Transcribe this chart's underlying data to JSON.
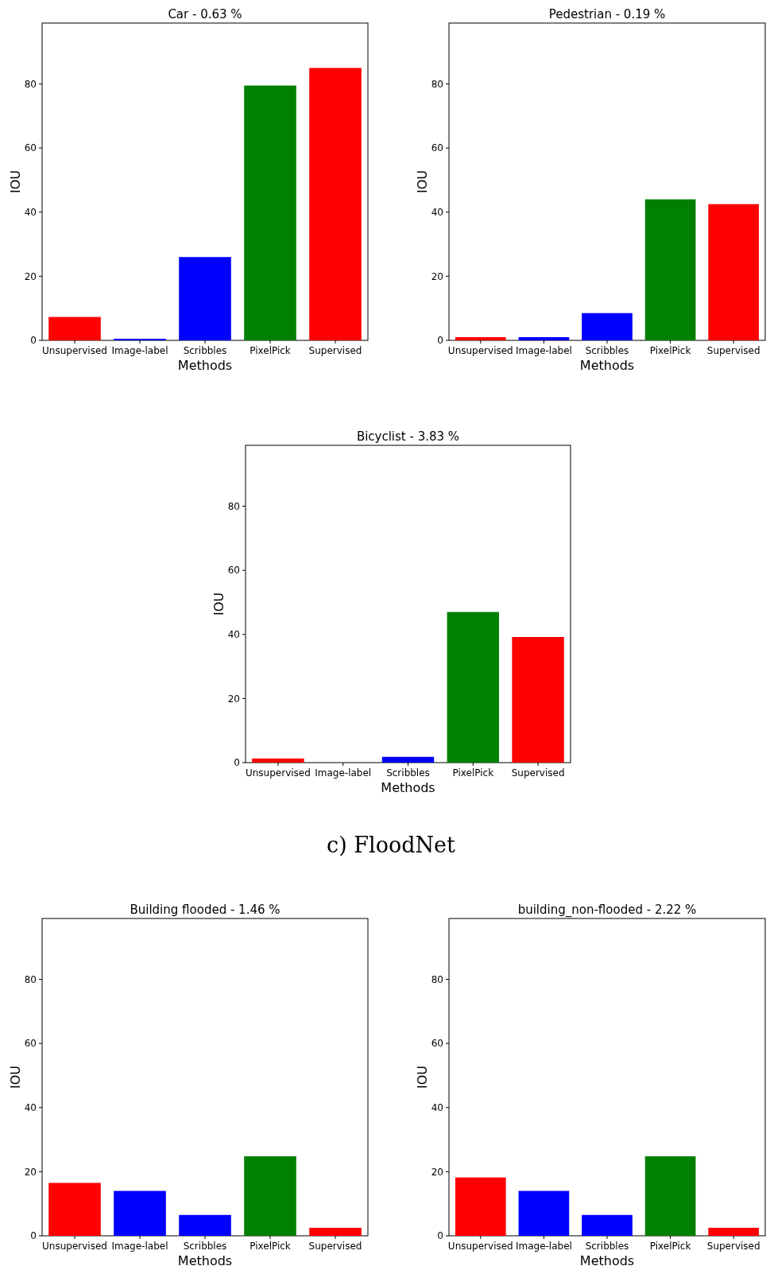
{
  "chart_data": [
    {
      "type": "bar",
      "title": "Car - 0.63 %",
      "xlabel": "Methods",
      "ylabel": "IOU",
      "categories": [
        "Unsupervised",
        "Image-label",
        "Scribbles",
        "PixelPick",
        "Supervised"
      ],
      "values": [
        7.3,
        0.5,
        26,
        79.5,
        85
      ],
      "colors": [
        "#ff0000",
        "#0000ff",
        "#0000ff",
        "#008000",
        "#ff0000"
      ],
      "ylim": [
        0,
        99
      ],
      "yticks": [
        0,
        20,
        40,
        60,
        80
      ]
    },
    {
      "type": "bar",
      "title": "Pedestrian - 0.19 %",
      "xlabel": "Methods",
      "ylabel": "IOU",
      "categories": [
        "Unsupervised",
        "Image-label",
        "Scribbles",
        "PixelPick",
        "Supervised"
      ],
      "values": [
        1,
        1,
        8.5,
        44,
        42.5
      ],
      "colors": [
        "#ff0000",
        "#0000ff",
        "#0000ff",
        "#008000",
        "#ff0000"
      ],
      "ylim": [
        0,
        99
      ],
      "yticks": [
        0,
        20,
        40,
        60,
        80
      ]
    },
    {
      "type": "bar",
      "title": "Bicyclist - 3.83 %",
      "xlabel": "Methods",
      "ylabel": "IOU",
      "categories": [
        "Unsupervised",
        "Image-label",
        "Scribbles",
        "PixelPick",
        "Supervised"
      ],
      "values": [
        1.3,
        0,
        1.8,
        47,
        39.2
      ],
      "colors": [
        "#ff0000",
        "#0000ff",
        "#0000ff",
        "#008000",
        "#ff0000"
      ],
      "ylim": [
        0,
        99
      ],
      "yticks": [
        0,
        20,
        40,
        60,
        80
      ]
    },
    {
      "type": "other",
      "title": "c) FloodNet"
    },
    {
      "type": "bar",
      "title": "Building flooded - 1.46 %",
      "xlabel": "Methods",
      "ylabel": "IOU",
      "categories": [
        "Unsupervised",
        "Image-label",
        "Scribbles",
        "PixelPick",
        "Supervised"
      ],
      "values": [
        16.5,
        14,
        6.5,
        24.8,
        2.5
      ],
      "colors": [
        "#ff0000",
        "#0000ff",
        "#0000ff",
        "#008000",
        "#ff0000"
      ],
      "ylim": [
        0,
        99
      ],
      "yticks": [
        0,
        20,
        40,
        60,
        80
      ]
    },
    {
      "type": "bar",
      "title": "building_non-flooded - 2.22 %",
      "xlabel": "Methods",
      "ylabel": "IOU",
      "categories": [
        "Unsupervised",
        "Image-label",
        "Scribbles",
        "PixelPick",
        "Supervised"
      ],
      "values": [
        18.2,
        14,
        6.5,
        24.8,
        2.5
      ],
      "colors": [
        "#ff0000",
        "#0000ff",
        "#0000ff",
        "#008000",
        "#ff0000"
      ],
      "ylim": [
        0,
        99
      ],
      "yticks": [
        0,
        20,
        40,
        60,
        80
      ]
    }
  ]
}
